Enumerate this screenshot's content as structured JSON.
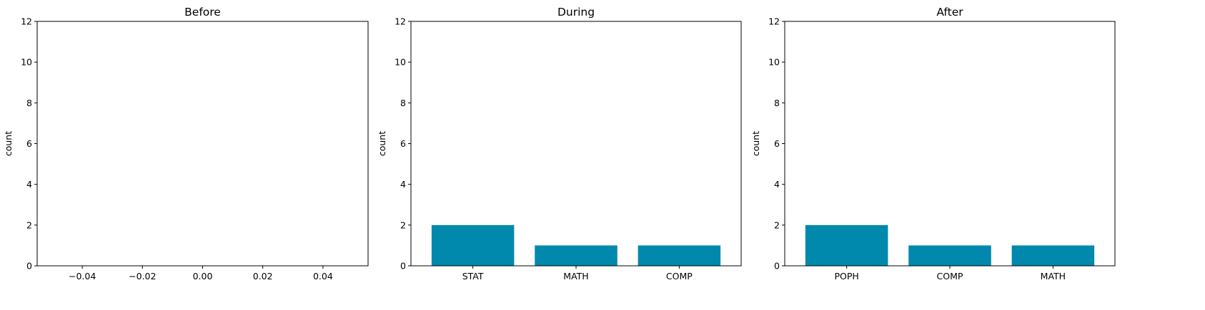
{
  "chart_data": [
    {
      "type": "bar",
      "title": "Before",
      "ylabel": "count",
      "xlabel": "",
      "categories": [],
      "values": [],
      "ylim": [
        0,
        12
      ],
      "yticks": [
        "0",
        "2",
        "4",
        "6",
        "8",
        "10",
        "12"
      ],
      "xlim": [
        -0.055,
        0.055
      ],
      "xticks": [
        -0.04,
        -0.02,
        0.0,
        0.02,
        0.04
      ],
      "xtick_labels": [
        "−0.04",
        "−0.02",
        "0.00",
        "0.02",
        "0.04"
      ],
      "grid": false
    },
    {
      "type": "bar",
      "title": "During",
      "ylabel": "count",
      "xlabel": "",
      "categories": [
        "STAT",
        "MATH",
        "COMP"
      ],
      "values": [
        2,
        1,
        1
      ],
      "ylim": [
        0,
        12
      ],
      "yticks": [
        "0",
        "2",
        "4",
        "6",
        "8",
        "10",
        "12"
      ],
      "grid": false
    },
    {
      "type": "bar",
      "title": "After",
      "ylabel": "count",
      "xlabel": "",
      "categories": [
        "POPH",
        "COMP",
        "MATH"
      ],
      "values": [
        2,
        1,
        1
      ],
      "ylim": [
        0,
        12
      ],
      "yticks": [
        "0",
        "2",
        "4",
        "6",
        "8",
        "10",
        "12"
      ],
      "grid": false
    }
  ],
  "colors": {
    "bar": "#0088ad",
    "axis": "#000000"
  }
}
